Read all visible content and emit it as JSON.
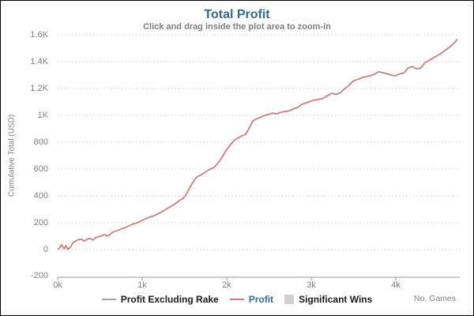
{
  "header": {
    "title": "Total Profit",
    "subtitle": "Click and drag inside the plot area to zoom-in"
  },
  "axes": {
    "y": {
      "title": "Cumulative Total (USD)",
      "ticks": [
        {
          "label": "1.6K",
          "value": 1600
        },
        {
          "label": "1.4K",
          "value": 1400
        },
        {
          "label": "1.2K",
          "value": 1200
        },
        {
          "label": "1K",
          "value": 1000
        },
        {
          "label": "800",
          "value": 800
        },
        {
          "label": "600",
          "value": 600
        },
        {
          "label": "400",
          "value": 400
        },
        {
          "label": "200",
          "value": 200
        },
        {
          "label": "0",
          "value": 0
        },
        {
          "label": "-200",
          "value": -200
        }
      ]
    },
    "x": {
      "title": "No. Games",
      "ticks": [
        {
          "label": "0k",
          "value": 0
        },
        {
          "label": "1k",
          "value": 1000
        },
        {
          "label": "2k",
          "value": 2000
        },
        {
          "label": "3k",
          "value": 3000
        },
        {
          "label": "4k",
          "value": 4000
        }
      ]
    }
  },
  "legend": {
    "items": [
      {
        "label": "Profit Excluding Rake",
        "swatch": "line",
        "swatch_color": "#a6a6a6",
        "label_color": "#1a1a1a"
      },
      {
        "label": "Profit",
        "swatch": "line",
        "swatch_color": "#c88080",
        "label_color": "#336b87"
      },
      {
        "label": "Significant Wins",
        "swatch": "square",
        "swatch_color": "#d0d0d0",
        "label_color": "#1a1a1a"
      }
    ]
  },
  "colors": {
    "title": "#336b87",
    "subtitle": "#7f7f7f",
    "axis_labels": "#808080",
    "grid": "#cccccc",
    "axis_line": "#999999",
    "profit_line": "#c88080",
    "background": "#ffffff",
    "border": "#000000"
  },
  "chart_data": {
    "type": "line",
    "title": "Total Profit",
    "subtitle": "Click and drag inside the plot area to zoom-in",
    "xlabel": "No. Games",
    "ylabel": "Cumulative Total (USD)",
    "xlim": [
      0,
      4760
    ],
    "ylim": [
      -200,
      1600
    ],
    "x_tick_labels": [
      "0k",
      "1k",
      "2k",
      "3k",
      "4k"
    ],
    "y_tick_labels": [
      "-200",
      "0",
      "200",
      "400",
      "600",
      "800",
      "1K",
      "1.2K",
      "1.4K",
      "1.6K"
    ],
    "grid": "horizontal-dotted",
    "legend_position": "bottom",
    "legend_entries": [
      "Profit Excluding Rake",
      "Profit",
      "Significant Wins"
    ],
    "series": [
      {
        "name": "Profit",
        "color": "#c88080",
        "points": [
          [
            0,
            0
          ],
          [
            25,
            15
          ],
          [
            45,
            36
          ],
          [
            60,
            22
          ],
          [
            75,
            6
          ],
          [
            95,
            30
          ],
          [
            120,
            2
          ],
          [
            150,
            18
          ],
          [
            185,
            54
          ],
          [
            235,
            72
          ],
          [
            280,
            78
          ],
          [
            310,
            64
          ],
          [
            375,
            84
          ],
          [
            420,
            72
          ],
          [
            450,
            90
          ],
          [
            515,
            102
          ],
          [
            560,
            113
          ],
          [
            580,
            101
          ],
          [
            610,
            108
          ],
          [
            655,
            131
          ],
          [
            700,
            140
          ],
          [
            745,
            152
          ],
          [
            790,
            162
          ],
          [
            840,
            176
          ],
          [
            890,
            190
          ],
          [
            940,
            200
          ],
          [
            990,
            214
          ],
          [
            1040,
            230
          ],
          [
            1090,
            243
          ],
          [
            1140,
            252
          ],
          [
            1190,
            267
          ],
          [
            1240,
            284
          ],
          [
            1290,
            304
          ],
          [
            1340,
            322
          ],
          [
            1380,
            338
          ],
          [
            1415,
            352
          ],
          [
            1445,
            368
          ],
          [
            1480,
            380
          ],
          [
            1515,
            406
          ],
          [
            1555,
            452
          ],
          [
            1595,
            497
          ],
          [
            1645,
            540
          ],
          [
            1700,
            558
          ],
          [
            1755,
            580
          ],
          [
            1805,
            600
          ],
          [
            1855,
            614
          ],
          [
            1905,
            652
          ],
          [
            1945,
            688
          ],
          [
            1995,
            742
          ],
          [
            2040,
            778
          ],
          [
            2085,
            812
          ],
          [
            2130,
            830
          ],
          [
            2180,
            848
          ],
          [
            2225,
            860
          ],
          [
            2265,
            905
          ],
          [
            2310,
            960
          ],
          [
            2355,
            974
          ],
          [
            2400,
            986
          ],
          [
            2450,
            1000
          ],
          [
            2500,
            1008
          ],
          [
            2545,
            1016
          ],
          [
            2595,
            1012
          ],
          [
            2645,
            1024
          ],
          [
            2695,
            1028
          ],
          [
            2745,
            1036
          ],
          [
            2795,
            1050
          ],
          [
            2845,
            1060
          ],
          [
            2890,
            1082
          ],
          [
            2945,
            1094
          ],
          [
            2995,
            1106
          ],
          [
            3045,
            1114
          ],
          [
            3095,
            1120
          ],
          [
            3145,
            1128
          ],
          [
            3195,
            1148
          ],
          [
            3245,
            1164
          ],
          [
            3295,
            1156
          ],
          [
            3345,
            1168
          ],
          [
            3395,
            1198
          ],
          [
            3445,
            1222
          ],
          [
            3495,
            1256
          ],
          [
            3545,
            1266
          ],
          [
            3595,
            1280
          ],
          [
            3645,
            1288
          ],
          [
            3695,
            1294
          ],
          [
            3745,
            1306
          ],
          [
            3795,
            1324
          ],
          [
            3845,
            1318
          ],
          [
            3895,
            1310
          ],
          [
            3945,
            1300
          ],
          [
            3995,
            1294
          ],
          [
            4045,
            1308
          ],
          [
            4095,
            1316
          ],
          [
            4145,
            1352
          ],
          [
            4195,
            1364
          ],
          [
            4245,
            1346
          ],
          [
            4295,
            1352
          ],
          [
            4345,
            1392
          ],
          [
            4395,
            1410
          ],
          [
            4445,
            1428
          ],
          [
            4495,
            1446
          ],
          [
            4545,
            1466
          ],
          [
            4595,
            1490
          ],
          [
            4645,
            1512
          ],
          [
            4690,
            1538
          ],
          [
            4730,
            1566
          ]
        ]
      }
    ]
  }
}
